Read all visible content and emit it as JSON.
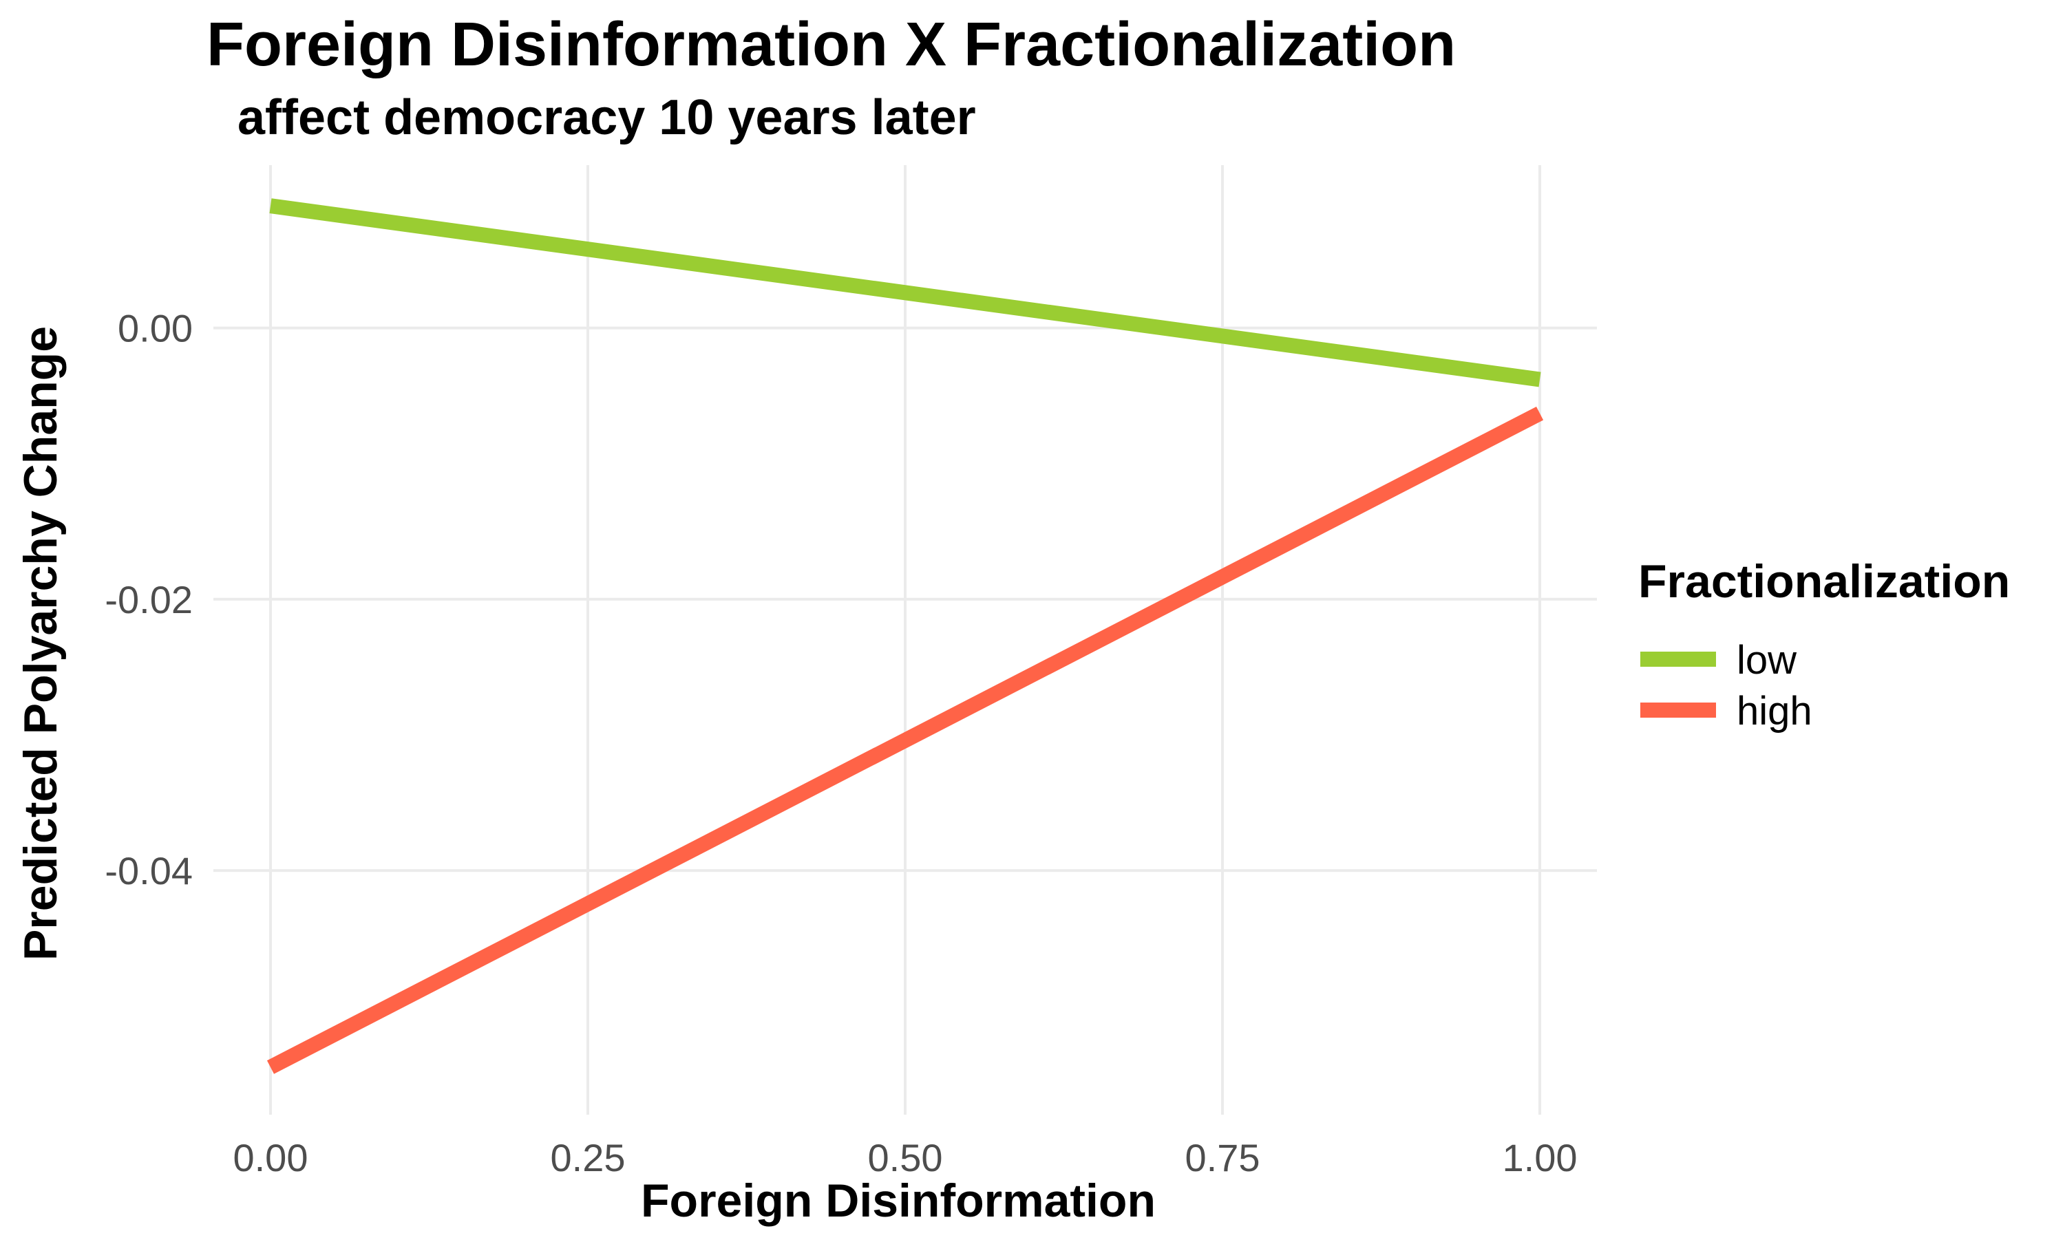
{
  "chart_data": {
    "type": "line",
    "title": "Foreign Disinformation X Fractionalization",
    "subtitle": "affect democracy 10 years later",
    "xlabel": "Foreign Disinformation",
    "ylabel": "Predicted Polyarchy Change",
    "xlim": [
      -0.045,
      1.045
    ],
    "ylim": [
      -0.058,
      0.012
    ],
    "x_ticks": [
      0.0,
      0.25,
      0.5,
      0.75,
      1.0
    ],
    "x_tick_labels": [
      "0.00",
      "0.25",
      "0.50",
      "0.75",
      "1.00"
    ],
    "y_ticks": [
      0.0,
      -0.02,
      -0.04
    ],
    "y_tick_labels": [
      "0.00",
      "-0.02",
      "-0.04"
    ],
    "grid": true,
    "legend": {
      "title": "Fractionalization",
      "placement": "right"
    },
    "series": [
      {
        "name": "low",
        "color": "#9acd32",
        "x": [
          0.0,
          1.0
        ],
        "y": [
          0.009,
          -0.0038
        ]
      },
      {
        "name": "high",
        "color": "#ff6347",
        "x": [
          0.0,
          1.0
        ],
        "y": [
          -0.0545,
          -0.0063
        ]
      }
    ]
  }
}
